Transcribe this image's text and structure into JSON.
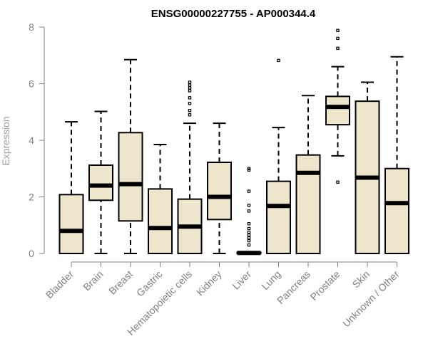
{
  "chart_data": {
    "type": "boxplot",
    "title": "ENSG00000227755 - AP000344.4",
    "xlabel": "",
    "ylabel": "Expression",
    "ylim": [
      0,
      8
    ],
    "yticks": [
      0,
      2,
      4,
      6,
      8
    ],
    "box_fill": "#ede5cc",
    "categories": [
      "Bladder",
      "Brain",
      "Breast",
      "Gastric",
      "Hematopoietic cells",
      "Kidney",
      "Liver",
      "Lung",
      "Pancreas",
      "Prostate",
      "Skin",
      "Unknown / Other"
    ],
    "boxes": [
      {
        "min": 0,
        "q1": 0,
        "median": 0.8,
        "q3": 2.08,
        "max": 4.65,
        "outliers": []
      },
      {
        "min": 0,
        "q1": 1.88,
        "median": 2.4,
        "q3": 3.12,
        "max": 5.02,
        "outliers": []
      },
      {
        "min": 0,
        "q1": 1.15,
        "median": 2.45,
        "q3": 4.27,
        "max": 6.85,
        "outliers": []
      },
      {
        "min": 0,
        "q1": 0,
        "median": 0.9,
        "q3": 2.28,
        "max": 3.85,
        "outliers": []
      },
      {
        "min": 0,
        "q1": 0,
        "median": 0.95,
        "q3": 1.92,
        "max": 4.6,
        "outliers": [
          4.9,
          5.05,
          5.3,
          5.5,
          5.75,
          5.85,
          5.95,
          6.05
        ]
      },
      {
        "min": 0,
        "q1": 1.2,
        "median": 2.0,
        "q3": 3.22,
        "max": 4.6,
        "outliers": []
      },
      {
        "min": 0,
        "q1": 0,
        "median": 0.02,
        "q3": 0.04,
        "max": 0.06,
        "outliers": [
          0.3,
          0.45,
          0.55,
          0.65,
          0.75,
          0.88,
          1.05,
          1.5,
          1.7,
          2.2,
          2.95,
          3.0
        ]
      },
      {
        "min": 0,
        "q1": 0,
        "median": 1.68,
        "q3": 2.55,
        "max": 4.45,
        "outliers": [
          6.82
        ]
      },
      {
        "min": 0,
        "q1": 0,
        "median": 2.85,
        "q3": 3.48,
        "max": 5.58,
        "outliers": []
      },
      {
        "min": 3.45,
        "q1": 4.55,
        "median": 5.18,
        "q3": 5.55,
        "max": 6.6,
        "outliers": [
          2.52,
          7.25,
          7.6,
          7.88
        ]
      },
      {
        "min": 0,
        "q1": 0,
        "median": 2.68,
        "q3": 5.38,
        "max": 6.05,
        "outliers": []
      },
      {
        "min": 0,
        "q1": 0,
        "median": 1.78,
        "q3": 3.0,
        "max": 6.95,
        "outliers": []
      }
    ]
  }
}
